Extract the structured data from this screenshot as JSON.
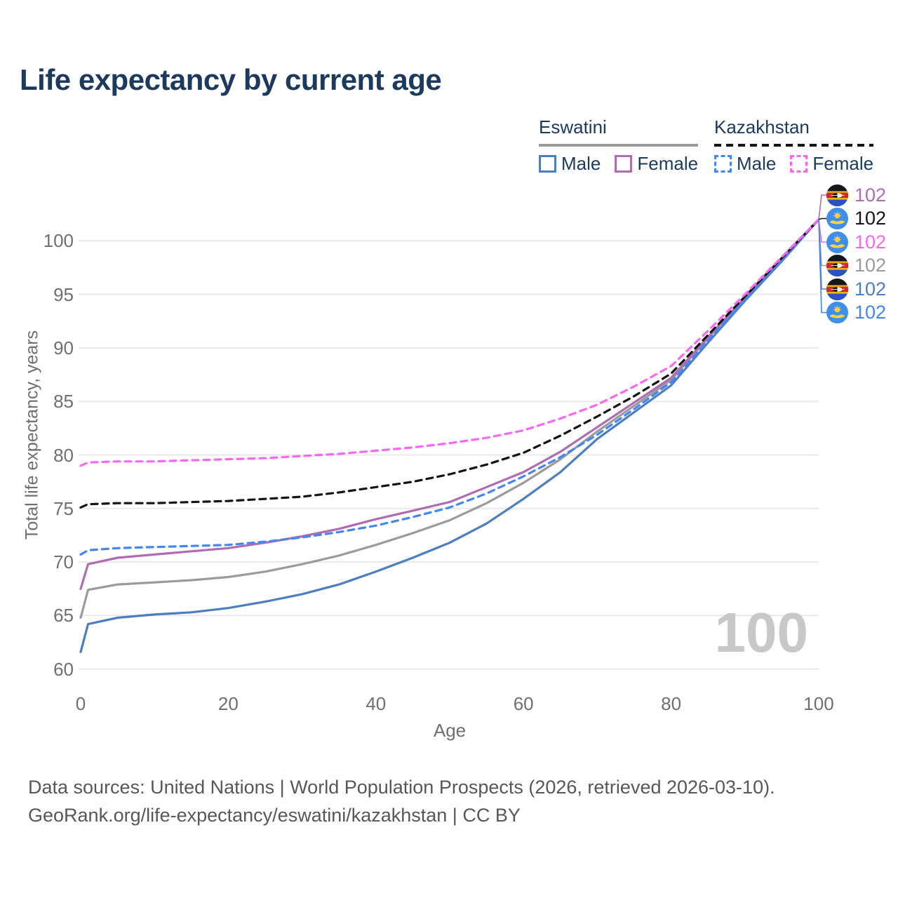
{
  "title": "Life expectancy by current age",
  "watermark": "100",
  "legend": {
    "eswatini": {
      "title": "Eswatini",
      "male": "Male",
      "female": "Female"
    },
    "kazakhstan": {
      "title": "Kazakhstan",
      "male": "Male",
      "female": "Female"
    }
  },
  "footer": {
    "line1": "Data sources: United Nations | World Population Prospects (2026, retrieved 2026-03-10).",
    "line2": "GeoRank.org/life-expectancy/eswatini/kazakhstan | CC BY"
  },
  "colors": {
    "title_text": "#1b3a5e",
    "axis_text": "#6f6f6f",
    "gridline": "#e8e8e8",
    "watermark": "#c8c8c8",
    "eswatini_male": "#4d7ebf",
    "eswatini_female": "#b06cb3",
    "eswatini_all": "#9b9b9b",
    "kazakhstan_male": "#4487f2",
    "kazakhstan_female": "#fa68ef",
    "kazakhstan_all": "#141414"
  },
  "chart_data": {
    "type": "line",
    "title": "Life expectancy by current age",
    "xlabel": "Age",
    "ylabel": "Total life expectancy, years",
    "xlim": [
      0,
      100
    ],
    "ylim": [
      58.5,
      103
    ],
    "xticks": [
      0,
      20,
      40,
      60,
      80,
      100
    ],
    "yticks": [
      60,
      65,
      70,
      75,
      80,
      85,
      90,
      95,
      100
    ],
    "grid": "horizontal-only",
    "legend_position": "top-right",
    "x": [
      0,
      1,
      5,
      10,
      15,
      20,
      25,
      30,
      35,
      40,
      45,
      50,
      55,
      60,
      65,
      70,
      75,
      80,
      85,
      90,
      95,
      100
    ],
    "series": [
      {
        "id": "eswatini_all",
        "name": "Eswatini",
        "country": "Eswatini",
        "sex": "All",
        "style": "solid",
        "values": [
          64.8,
          67.4,
          67.9,
          68.1,
          68.3,
          68.6,
          69.1,
          69.8,
          70.6,
          71.6,
          72.7,
          73.9,
          75.5,
          77.4,
          79.6,
          82.2,
          84.6,
          87.0,
          90.9,
          94.6,
          98.2,
          102
        ]
      },
      {
        "id": "eswatini_male",
        "name": "Eswatini Male",
        "country": "Eswatini",
        "sex": "Male",
        "style": "solid",
        "values": [
          61.6,
          64.2,
          64.8,
          65.1,
          65.3,
          65.7,
          66.3,
          67.0,
          67.9,
          69.1,
          70.4,
          71.8,
          73.6,
          75.9,
          78.4,
          81.5,
          84.0,
          86.5,
          90.5,
          94.4,
          98.1,
          102
        ]
      },
      {
        "id": "eswatini_female",
        "name": "Eswatini Female",
        "country": "Eswatini",
        "sex": "Female",
        "style": "solid",
        "values": [
          67.5,
          69.8,
          70.4,
          70.7,
          71.0,
          71.3,
          71.8,
          72.4,
          73.1,
          74.0,
          74.8,
          75.6,
          77.0,
          78.4,
          80.3,
          82.6,
          84.9,
          87.2,
          91.0,
          94.7,
          98.3,
          102
        ]
      },
      {
        "id": "kazakhstan_male",
        "name": "Kazakhstan Male",
        "country": "Kazakhstan",
        "sex": "Male",
        "style": "dashed",
        "values": [
          70.7,
          71.1,
          71.3,
          71.4,
          71.5,
          71.6,
          71.9,
          72.3,
          72.8,
          73.4,
          74.2,
          75.1,
          76.4,
          78.0,
          79.8,
          81.9,
          84.3,
          86.8,
          90.7,
          94.5,
          98.2,
          102
        ]
      },
      {
        "id": "kazakhstan_all",
        "name": "Kazakhstan",
        "country": "Kazakhstan",
        "sex": "All",
        "style": "dashed",
        "values": [
          75.1,
          75.4,
          75.5,
          75.5,
          75.6,
          75.7,
          75.9,
          76.1,
          76.5,
          77.0,
          77.5,
          78.2,
          79.1,
          80.2,
          81.8,
          83.6,
          85.5,
          87.6,
          91.2,
          94.8,
          98.4,
          102
        ]
      },
      {
        "id": "kazakhstan_female",
        "name": "Kazakhstan Female",
        "country": "Kazakhstan",
        "sex": "Female",
        "style": "dashed",
        "values": [
          79.0,
          79.3,
          79.4,
          79.4,
          79.5,
          79.6,
          79.7,
          79.9,
          80.1,
          80.4,
          80.7,
          81.1,
          81.6,
          82.3,
          83.4,
          84.7,
          86.4,
          88.3,
          91.6,
          95.0,
          98.5,
          102
        ]
      }
    ],
    "end_labels": [
      {
        "series": "eswatini_female",
        "icon": "eswatini-flag-icon",
        "flag": "eswatini",
        "value": "102"
      },
      {
        "series": "kazakhstan_all",
        "icon": "kazakhstan-flag-icon",
        "flag": "kazakhstan",
        "value": "102"
      },
      {
        "series": "kazakhstan_female",
        "icon": "kazakhstan-flag-icon",
        "flag": "kazakhstan",
        "value": "102"
      },
      {
        "series": "eswatini_all",
        "icon": "eswatini-flag-icon",
        "flag": "eswatini",
        "value": "102"
      },
      {
        "series": "eswatini_male",
        "icon": "eswatini-flag-icon",
        "flag": "eswatini",
        "value": "102"
      },
      {
        "series": "kazakhstan_male",
        "icon": "kazakhstan-flag-icon",
        "flag": "kazakhstan",
        "value": "102"
      }
    ]
  }
}
